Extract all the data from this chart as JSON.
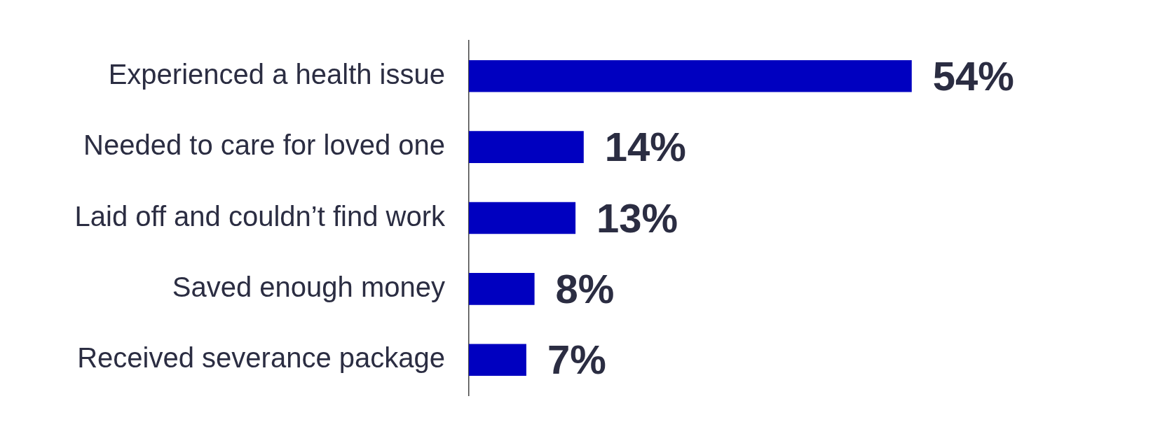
{
  "chart_data": {
    "type": "bar",
    "orientation": "horizontal",
    "categories": [
      "Experienced a health issue",
      "Needed to care for loved one",
      "Laid off and couldn’t find work",
      "Saved enough money",
      "Received severance package"
    ],
    "values": [
      54,
      14,
      13,
      8,
      7
    ],
    "color": "#0000c0",
    "value_labels": [
      "54%",
      "14%",
      "13%",
      "8%",
      "7%"
    ],
    "tick_labels": "y",
    "grid": false,
    "legend": false
  }
}
